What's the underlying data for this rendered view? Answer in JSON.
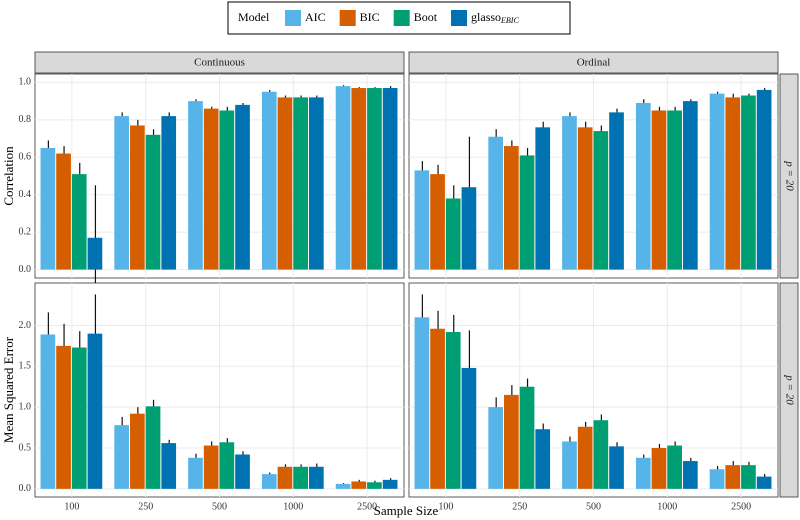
{
  "legend_title": "Model",
  "xlabel": "Sample Size",
  "chart_data": [
    {
      "type": "bar",
      "facet": "Continuous",
      "ylabel": "Correlation",
      "ylim": [
        -0.045,
        1.045
      ],
      "yticks": [
        {
          "value": 0,
          "label": "0.0"
        },
        0.2,
        0.4,
        0.6,
        0.8,
        {
          "value": 1,
          "label": "1.0"
        }
      ],
      "grid": true,
      "series": [
        {
          "name": "AIC",
          "color": "#56B4E9",
          "values": [
            0.65,
            0.82,
            0.9,
            0.95,
            0.98
          ],
          "errors": [
            0.04,
            0.02,
            0.01,
            0.01,
            0.005
          ]
        },
        {
          "name": "BIC",
          "color": "#D55E00",
          "values": [
            0.62,
            0.77,
            0.86,
            0.92,
            0.97
          ],
          "errors": [
            0.04,
            0.03,
            0.01,
            0.01,
            0.005
          ]
        },
        {
          "name": "Boot",
          "color": "#009E73",
          "values": [
            0.51,
            0.72,
            0.85,
            0.92,
            0.97
          ],
          "errors": [
            0.06,
            0.03,
            0.02,
            0.01,
            0.005
          ]
        },
        {
          "name": "glasso",
          "subscript": "EBIC",
          "color": "#0072B2",
          "values": [
            0.17,
            0.82,
            0.88,
            0.92,
            0.97
          ],
          "errors": [
            0.28,
            0.02,
            0.01,
            0.01,
            0.01
          ]
        }
      ]
    },
    {
      "type": "bar",
      "facet": "Ordinal",
      "row": "p = 20",
      "ylim": [
        -0.045,
        1.045
      ],
      "yticks": [
        0,
        0.2,
        0.4,
        0.6,
        0.8,
        1
      ],
      "grid": true,
      "series": [
        {
          "name": "AIC",
          "color": "#56B4E9",
          "values": [
            0.53,
            0.71,
            0.82,
            0.89,
            0.94
          ],
          "errors": [
            0.05,
            0.04,
            0.02,
            0.02,
            0.01
          ]
        },
        {
          "name": "BIC",
          "color": "#D55E00",
          "values": [
            0.51,
            0.66,
            0.76,
            0.85,
            0.92
          ],
          "errors": [
            0.05,
            0.03,
            0.03,
            0.02,
            0.02
          ]
        },
        {
          "name": "Boot",
          "color": "#009E73",
          "values": [
            0.38,
            0.61,
            0.74,
            0.85,
            0.93
          ],
          "errors": [
            0.07,
            0.04,
            0.03,
            0.02,
            0.01
          ]
        },
        {
          "name": "glasso",
          "subscript": "EBIC",
          "color": "#0072B2",
          "values": [
            0.44,
            0.76,
            0.84,
            0.9,
            0.96
          ],
          "errors": [
            0.27,
            0.03,
            0.02,
            0.01,
            0.01
          ]
        }
      ]
    },
    {
      "type": "bar",
      "ylabel": "Mean Squared Error",
      "ylim": [
        -0.1,
        2.52
      ],
      "categories": [
        "100",
        "250",
        "500",
        "1000",
        "2500"
      ],
      "yticks": [
        {
          "value": 0,
          "label": "0.0"
        },
        0.5,
        {
          "value": 1,
          "label": "1.0"
        },
        1.5,
        {
          "value": 2,
          "label": "2.0"
        }
      ],
      "grid": true,
      "series": [
        {
          "name": "AIC",
          "color": "#56B4E9",
          "values": [
            1.89,
            0.78,
            0.38,
            0.18,
            0.06
          ],
          "errors": [
            0.27,
            0.1,
            0.05,
            0.02,
            0.01
          ]
        },
        {
          "name": "BIC",
          "color": "#D55E00",
          "values": [
            1.75,
            0.92,
            0.53,
            0.27,
            0.09
          ],
          "errors": [
            0.27,
            0.08,
            0.05,
            0.03,
            0.02
          ]
        },
        {
          "name": "Boot",
          "color": "#009E73",
          "values": [
            1.73,
            1.01,
            0.57,
            0.27,
            0.08
          ],
          "errors": [
            0.2,
            0.08,
            0.05,
            0.03,
            0.02
          ]
        },
        {
          "name": "glasso",
          "subscript": "EBIC",
          "color": "#0072B2",
          "values": [
            1.9,
            0.56,
            0.42,
            0.27,
            0.11
          ],
          "errors": [
            0.48,
            0.04,
            0.04,
            0.04,
            0.02
          ]
        }
      ]
    },
    {
      "type": "bar",
      "row": "p = 20",
      "ylim": [
        -0.1,
        2.52
      ],
      "categories": [
        "100",
        "250",
        "500",
        "1000",
        "2500"
      ],
      "yticks": [
        0,
        0.5,
        1,
        1.5,
        2
      ],
      "grid": true,
      "series": [
        {
          "name": "AIC",
          "color": "#56B4E9",
          "values": [
            2.1,
            1.0,
            0.58,
            0.38,
            0.24
          ],
          "errors": [
            0.28,
            0.12,
            0.06,
            0.04,
            0.04
          ]
        },
        {
          "name": "BIC",
          "color": "#D55E00",
          "values": [
            1.96,
            1.15,
            0.76,
            0.5,
            0.29
          ],
          "errors": [
            0.22,
            0.12,
            0.06,
            0.05,
            0.05
          ]
        },
        {
          "name": "Boot",
          "color": "#009E73",
          "values": [
            1.92,
            1.25,
            0.84,
            0.53,
            0.29
          ],
          "errors": [
            0.21,
            0.1,
            0.07,
            0.05,
            0.04
          ]
        },
        {
          "name": "glasso",
          "subscript": "EBIC",
          "color": "#0072B2",
          "values": [
            1.48,
            0.73,
            0.52,
            0.34,
            0.15
          ],
          "errors": [
            0.46,
            0.07,
            0.05,
            0.04,
            0.03
          ]
        }
      ]
    }
  ]
}
